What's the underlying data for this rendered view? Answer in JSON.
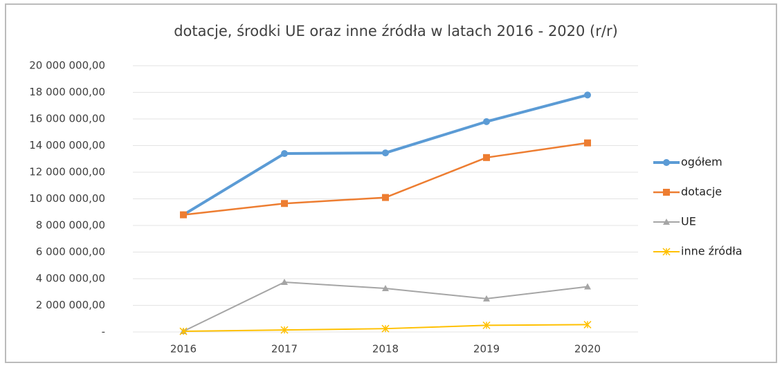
{
  "chart_data": {
    "type": "line",
    "title": "dotacje, środki UE oraz inne źródła w latach 2016 - 2020 (r/r)",
    "categories": [
      "2016",
      "2017",
      "2018",
      "2019",
      "2020"
    ],
    "series": [
      {
        "name": "ogółem",
        "color": "#5b9bd5",
        "marker": "circle",
        "values": [
          8800000,
          13400000,
          13450000,
          15800000,
          17800000
        ]
      },
      {
        "name": "dotacje",
        "color": "#ed7d31",
        "marker": "square",
        "values": [
          8800000,
          9650000,
          10100000,
          13100000,
          14200000
        ]
      },
      {
        "name": "UE",
        "color": "#a5a5a5",
        "marker": "triangle",
        "values": [
          50000,
          3740000,
          3270000,
          2500000,
          3400000
        ]
      },
      {
        "name": "inne źródła",
        "color": "#ffc000",
        "marker": "x",
        "values": [
          50000,
          150000,
          250000,
          500000,
          550000
        ]
      }
    ],
    "ylim": [
      0,
      20000000
    ],
    "yticks": [
      {
        "value": 0,
        "label": "-"
      },
      {
        "value": 2000000,
        "label": "2 000 000,00"
      },
      {
        "value": 4000000,
        "label": "4 000 000,00"
      },
      {
        "value": 6000000,
        "label": "6 000 000,00"
      },
      {
        "value": 8000000,
        "label": "8 000 000,00"
      },
      {
        "value": 10000000,
        "label": "10 000 000,00"
      },
      {
        "value": 12000000,
        "label": "12 000 000,00"
      },
      {
        "value": 14000000,
        "label": "14 000 000,00"
      },
      {
        "value": 16000000,
        "label": "16 000 000,00"
      },
      {
        "value": 18000000,
        "label": "18 000 000,00"
      },
      {
        "value": 20000000,
        "label": "20 000 000,00"
      }
    ],
    "grid": true,
    "legend": "right"
  }
}
